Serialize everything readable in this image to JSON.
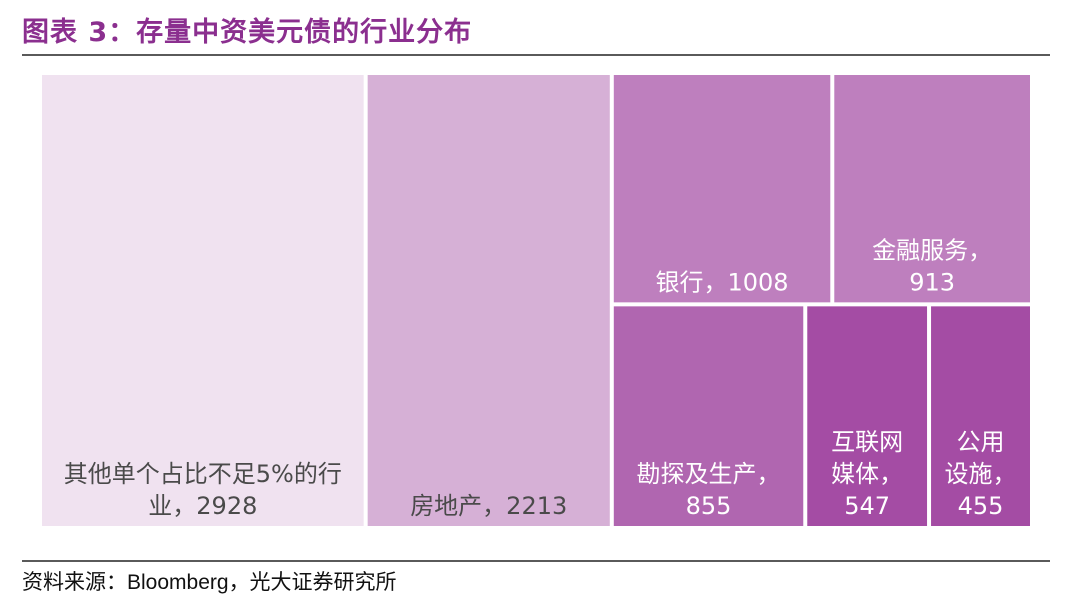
{
  "header": {
    "title": "图表 3：存量中资美元债的行业分布"
  },
  "footer": {
    "source_label": "资料来源：",
    "source_value": "Bloomberg",
    "source_suffix": "，光大证券研究所"
  },
  "chart_data": {
    "type": "treemap",
    "title": "图表 3：存量中资美元债的行业分布",
    "items": [
      {
        "label_lines": [
          "其他单个占比不足5%的行",
          "业，2928"
        ],
        "value": 2928,
        "color": "#f0e2f0",
        "text_color": "#4a4a4a"
      },
      {
        "label_lines": [
          "房地产，2213"
        ],
        "value": 2213,
        "color": "#d6b0d6",
        "text_color": "#4a4a4a"
      },
      {
        "label_lines": [
          "银行，1008"
        ],
        "value": 1008,
        "color": "#be7fbe",
        "text_color": "#ffffff"
      },
      {
        "label_lines": [
          "金融服务，",
          "913"
        ],
        "value": 913,
        "color": "#be7fbe",
        "text_color": "#ffffff"
      },
      {
        "label_lines": [
          "勘探及生产，",
          "855"
        ],
        "value": 855,
        "color": "#b066b0",
        "text_color": "#ffffff"
      },
      {
        "label_lines": [
          "互联网",
          "媒体，",
          "547"
        ],
        "value": 547,
        "color": "#a44ca4",
        "text_color": "#ffffff"
      },
      {
        "label_lines": [
          "公用",
          "设施，",
          "455"
        ],
        "value": 455,
        "color": "#a44ca4",
        "text_color": "#ffffff"
      }
    ]
  }
}
